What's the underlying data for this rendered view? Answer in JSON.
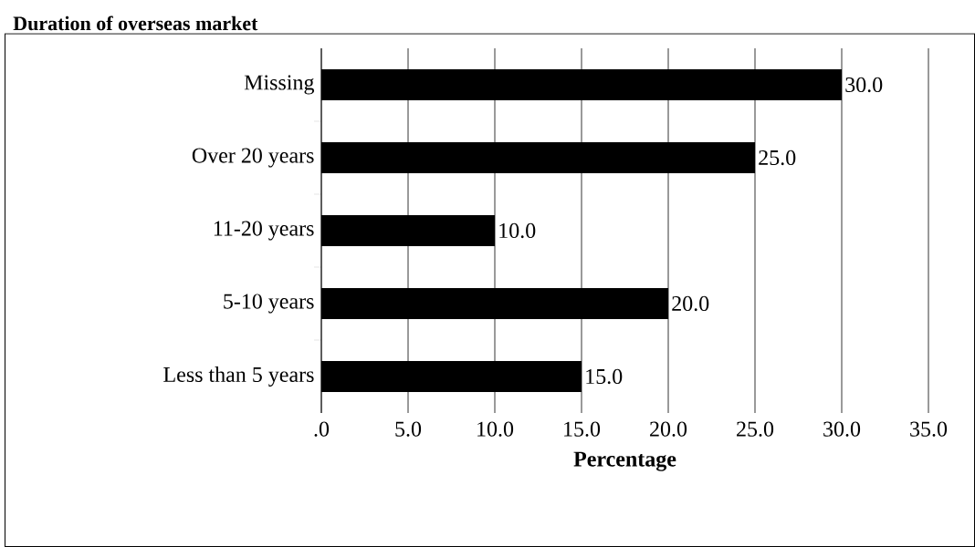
{
  "chart_data": {
    "type": "bar",
    "orientation": "horizontal",
    "title": "Duration of overseas market",
    "xlabel": "Percentage",
    "categories": [
      "Missing",
      "Over 20 years",
      "11-20 years",
      "5-10 years",
      "Less than 5 years"
    ],
    "values": [
      30,
      25,
      10,
      20,
      15
    ],
    "color": "#000000",
    "value_labels": [
      "30.0",
      "25.0",
      "10.0",
      "20.0",
      "15.0"
    ],
    "xlim": [
      0,
      35
    ],
    "xticks": [
      {
        "value": 0,
        "label": ".0"
      },
      {
        "value": 5,
        "label": "5.0"
      },
      {
        "value": 10,
        "label": "10.0"
      },
      {
        "value": 15,
        "label": "15.0"
      },
      {
        "value": 20,
        "label": "20.0"
      },
      {
        "value": 25,
        "label": "25.0"
      },
      {
        "value": 30,
        "label": "30.0"
      },
      {
        "value": 35,
        "label": "35.0"
      }
    ],
    "grid": "x"
  }
}
